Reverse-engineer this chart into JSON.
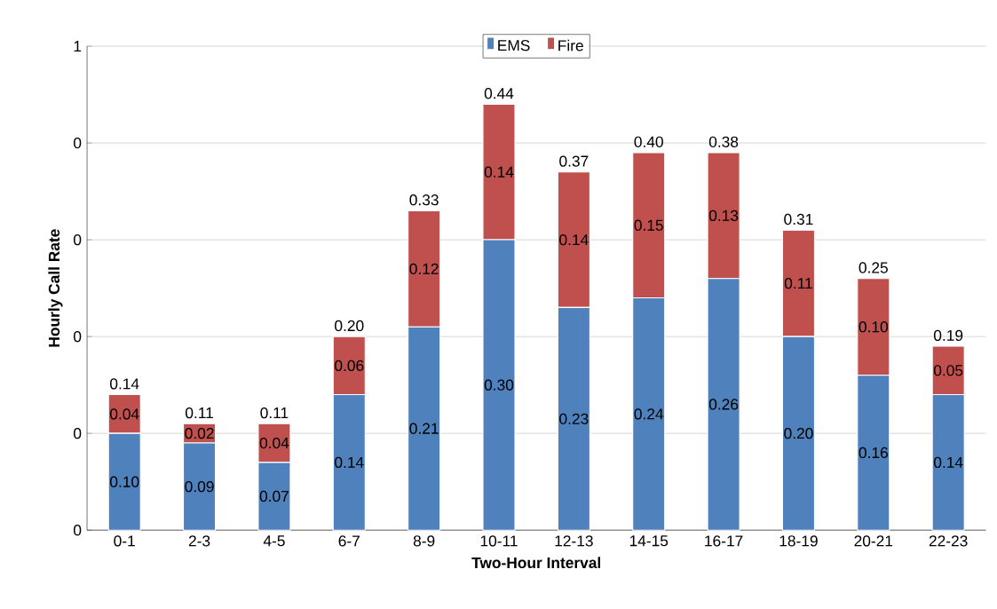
{
  "chart_data": {
    "type": "bar",
    "stacked": true,
    "xlabel": "Two-Hour Interval",
    "ylabel": "Hourly Call Rate",
    "categories": [
      "0-1",
      "2-3",
      "4-5",
      "6-7",
      "8-9",
      "10-11",
      "12-13",
      "14-15",
      "16-17",
      "18-19",
      "20-21",
      "22-23"
    ],
    "series": [
      {
        "name": "EMS",
        "color": "#4f81bd",
        "values": [
          0.1,
          0.09,
          0.07,
          0.14,
          0.21,
          0.3,
          0.23,
          0.24,
          0.26,
          0.2,
          0.16,
          0.14
        ],
        "value_labels": [
          "0.10",
          "0.09",
          "0.07",
          "0.14",
          "0.21",
          "0.30",
          "0.23",
          "0.24",
          "0.26",
          "0.20",
          "0.16",
          "0.14"
        ]
      },
      {
        "name": "Fire",
        "color": "#c0504d",
        "values": [
          0.04,
          0.02,
          0.04,
          0.06,
          0.12,
          0.14,
          0.14,
          0.15,
          0.13,
          0.11,
          0.1,
          0.05
        ],
        "value_labels": [
          "0.04",
          "0.02",
          "0.04",
          "0.06",
          "0.12",
          "0.14",
          "0.14",
          "0.15",
          "0.13",
          "0.11",
          "0.10",
          "0.05"
        ]
      }
    ],
    "totals": [
      "0.14",
      "0.11",
      "0.11",
      "0.20",
      "0.33",
      "0.44",
      "0.37",
      "0.40",
      "0.38",
      "0.31",
      "0.25",
      "0.19"
    ],
    "ylim": [
      0,
      0.5
    ],
    "yticks": [
      {
        "value": 0,
        "label": "0"
      },
      {
        "value": 0.1,
        "label": "0"
      },
      {
        "value": 0.2,
        "label": "0"
      },
      {
        "value": 0.3,
        "label": "0"
      },
      {
        "value": 0.4,
        "label": "0"
      },
      {
        "value": 0.5,
        "label": "1"
      }
    ],
    "grid": "y",
    "legend": "top"
  }
}
